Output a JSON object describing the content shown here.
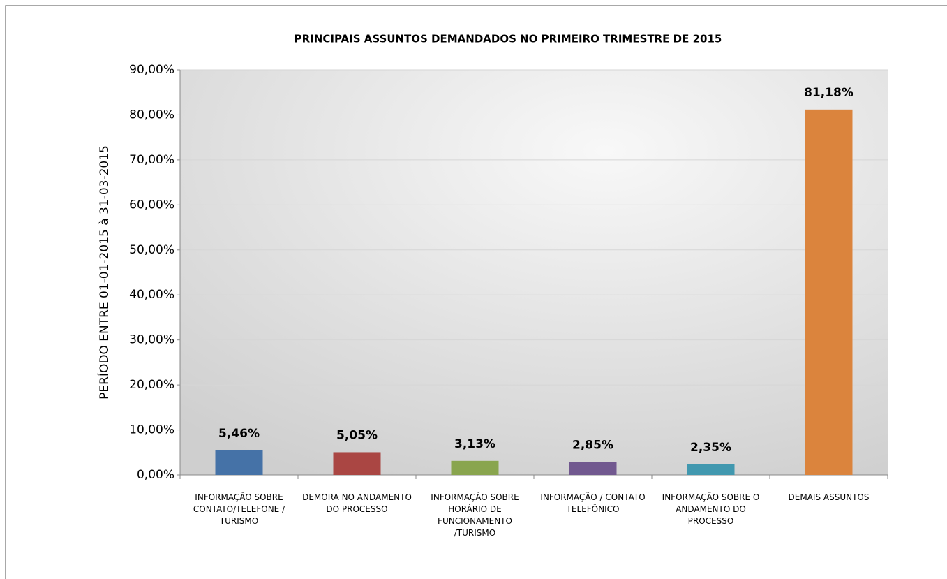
{
  "chart_data": {
    "type": "bar",
    "title": "PRINCIPAIS ASSUNTOS DEMANDADOS NO PRIMEIRO TRIMESTRE DE 2015",
    "y_label": "PERÍODO ENTRE 01-01-2015 à 31-03-2015",
    "categories": [
      "INFORMAÇÃO SOBRE CONTATO/TELEFONE / TURISMO",
      "DEMORA NO ANDAMENTO DO PROCESSO",
      "INFORMAÇÃO SOBRE HORÁRIO DE FUNCIONAMENTO /TURISMO",
      "INFORMAÇÃO / CONTATO TELEFÔNICO",
      "INFORMAÇÃO SOBRE O ANDAMENTO DO PROCESSO",
      "DEMAIS ASSUNTOS"
    ],
    "values": [
      5.46,
      5.05,
      3.13,
      2.85,
      2.35,
      81.18
    ],
    "value_labels": [
      "5,46%",
      "5,05%",
      "3,13%",
      "2,85%",
      "2,35%",
      "81,18%"
    ],
    "colors": [
      "#4572a7",
      "#aa4643",
      "#89a54e",
      "#71588f",
      "#4198af",
      "#db843d"
    ],
    "ylim": [
      0,
      90
    ],
    "yticks": [
      {
        "value": 0,
        "label": "0,00%"
      },
      {
        "value": 10,
        "label": "10,00%"
      },
      {
        "value": 20,
        "label": "20,00%"
      },
      {
        "value": 30,
        "label": "30,00%"
      },
      {
        "value": 40,
        "label": "40,00%"
      },
      {
        "value": 50,
        "label": "50,00%"
      },
      {
        "value": 60,
        "label": "60,00%"
      },
      {
        "value": 70,
        "label": "70,00%"
      },
      {
        "value": 80,
        "label": "80,00%"
      },
      {
        "value": 90,
        "label": "90,00%"
      }
    ],
    "grid": true
  }
}
